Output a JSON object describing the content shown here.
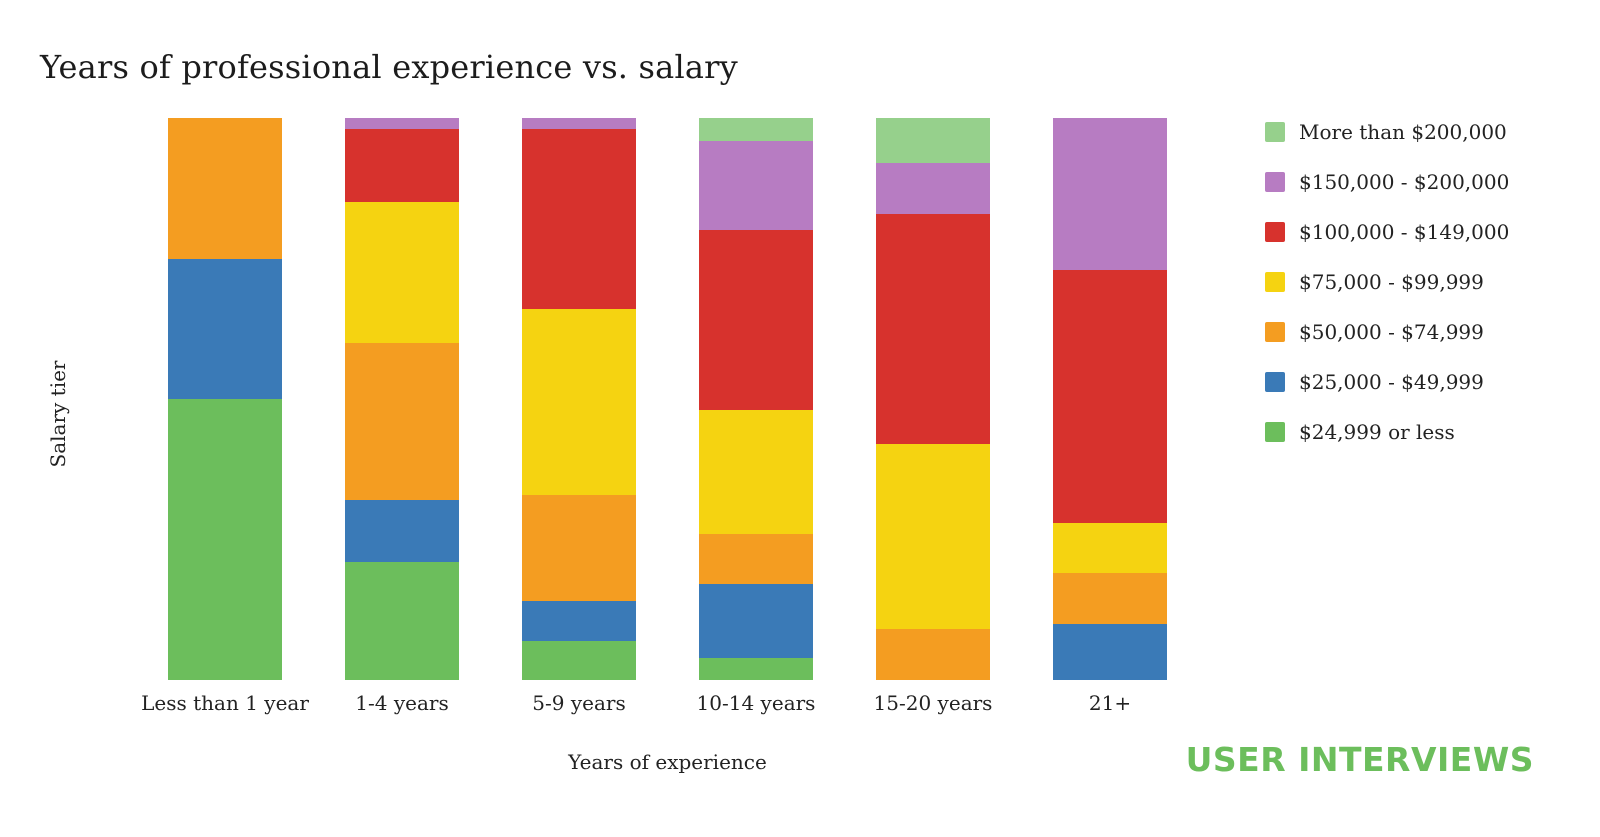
{
  "chart": {
    "title": "Years of professional experience vs. salary",
    "xlabel": "Years of experience",
    "ylabel": "Salary tier"
  },
  "branding": {
    "logo_text": "USER INTERVIEWS",
    "logo_color": "#6CBE5C"
  },
  "chart_data": {
    "type": "bar",
    "stacked": true,
    "percent": true,
    "title": "Years of professional experience vs. salary",
    "xlabel": "Years of experience",
    "ylabel": "Salary tier",
    "categories": [
      "Less than 1 year",
      "1-4 years",
      "5-9 years",
      "10-14 years",
      "15-20 years",
      "21+"
    ],
    "series": [
      {
        "name": "$24,999 or less",
        "color": "#6CBE5C",
        "values": [
          50,
          21,
          7,
          4,
          0,
          0
        ]
      },
      {
        "name": "$25,000 - $49,999",
        "color": "#3A7AB7",
        "values": [
          25,
          11,
          7,
          13,
          0,
          10
        ]
      },
      {
        "name": "$50,000 - $74,999",
        "color": "#F49D21",
        "values": [
          25,
          28,
          19,
          9,
          9,
          9
        ]
      },
      {
        "name": "$75,000 - $99,999",
        "color": "#F5D311",
        "values": [
          0,
          25,
          33,
          22,
          33,
          9
        ]
      },
      {
        "name": "$100,000 - $149,000",
        "color": "#D7322D",
        "values": [
          0,
          13,
          32,
          32,
          41,
          45
        ]
      },
      {
        "name": "$150,000 - $200,000",
        "color": "#B77CC2",
        "values": [
          0,
          2,
          2,
          16,
          9,
          27
        ]
      },
      {
        "name": "More than $200,000",
        "color": "#96D08C",
        "values": [
          0,
          0,
          0,
          4,
          8,
          0
        ]
      }
    ],
    "ylim": [
      0,
      100
    ],
    "grid": false,
    "legend_position": "top-right",
    "legend_order": "reversed-top-to-bottom"
  }
}
